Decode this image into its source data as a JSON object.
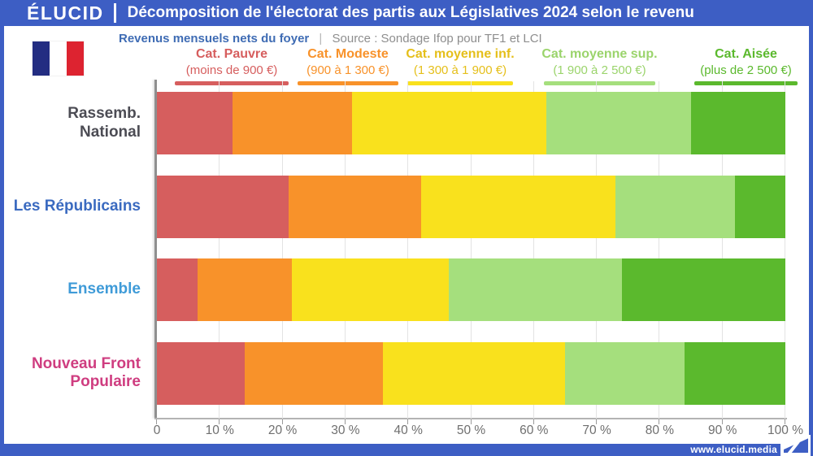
{
  "colors": {
    "accent_blue": "#3d5ec4",
    "subtitle_blue": "#3f6cb4",
    "flag_blue": "#232d82",
    "flag_red": "#dd2330"
  },
  "header": {
    "brand": "ÉLUCID",
    "title": "Décomposition de l'électorat des partis aux Législatives 2024 selon le revenu"
  },
  "subtitle": {
    "label": "Revenus mensuels nets du foyer",
    "separator": "|",
    "source": "Source : Sondage Ifop pour TF1 et LCI"
  },
  "footer": {
    "url": "www.elucid.media"
  },
  "chart_data": {
    "type": "bar",
    "orientation": "horizontal",
    "stacked": true,
    "unit": "%",
    "xlim": [
      0,
      100
    ],
    "grid": true,
    "x_ticks": [
      "0",
      "10 %",
      "20 %",
      "30 %",
      "40 %",
      "50 %",
      "60 %",
      "70 %",
      "80 %",
      "90 %",
      "100 %"
    ],
    "categories": [
      "Rassemb. National",
      "Les Républicains",
      "Ensemble",
      "Nouveau Front Populaire"
    ],
    "category_colors": [
      "#4c4c54",
      "#3a6ac0",
      "#3f9bd8",
      "#cf3d80"
    ],
    "series": [
      {
        "name": "Cat. Pauvre",
        "range": "(moins de 900 €)",
        "color": "#d65e5e",
        "label_color": "#d65e5e",
        "values": [
          12,
          21,
          6.5,
          14
        ]
      },
      {
        "name": "Cat. Modeste",
        "range": "(900 à 1 300 €)",
        "color": "#f8922a",
        "label_color": "#f8922a",
        "values": [
          19,
          21,
          15,
          22
        ]
      },
      {
        "name": "Cat. moyenne inf.",
        "range": "(1 300 à 1 900 €)",
        "color": "#f9e11d",
        "label_color": "#e5bf1a",
        "values": [
          31,
          31,
          25,
          29
        ]
      },
      {
        "name": "Cat. moyenne sup.",
        "range": "(1 900 à 2 500 €)",
        "color": "#a5df7d",
        "label_color": "#9bd46c",
        "values": [
          23,
          19,
          27.5,
          19
        ]
      },
      {
        "name": "Cat. Aisée",
        "range": "(plus de 2 500 €)",
        "color": "#5bb92d",
        "label_color": "#5bb92d",
        "values": [
          15,
          8,
          26,
          16
        ]
      }
    ]
  }
}
